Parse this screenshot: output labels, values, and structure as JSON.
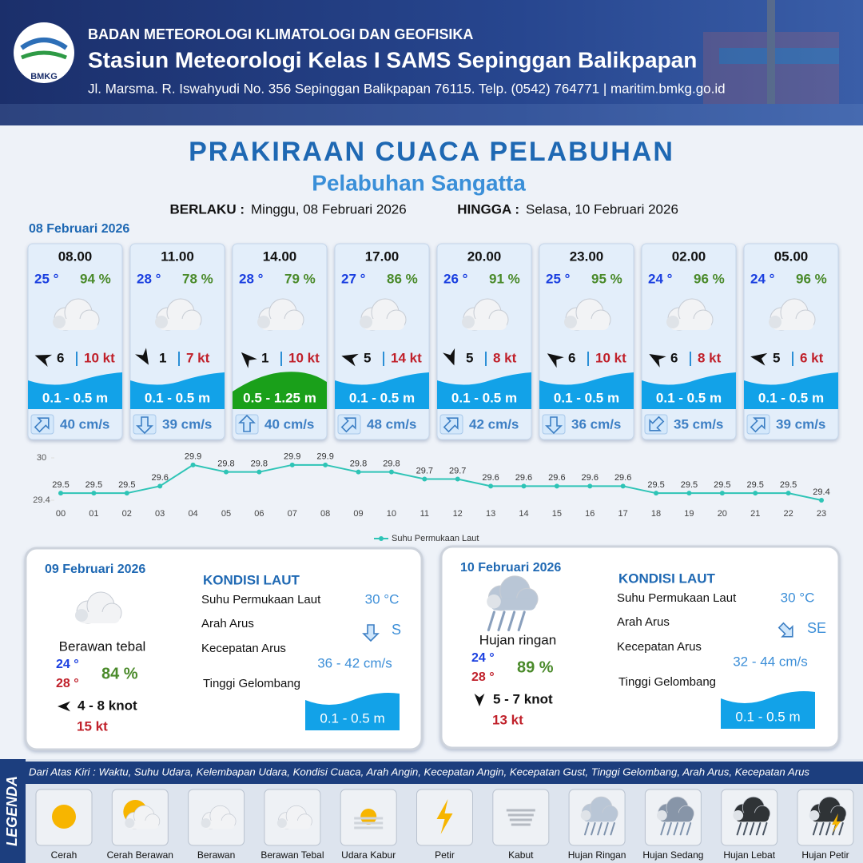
{
  "header": {
    "logo_text": "BMKG",
    "agency": "BADAN METEOROLOGI KLIMATOLOGI DAN GEOFISIKA",
    "station": "Stasiun Meteorologi Kelas I SAMS Sepinggan Balikpapan",
    "address": "Jl. Marsma. R. Iswahyudi No. 356 Sepinggan Balikpapan 76115. Telp. (0542) 764771 | maritim.bmkg.go.id"
  },
  "title": "PRAKIRAAN CUACA PELABUHAN",
  "subtitle": "Pelabuhan Sangatta",
  "validity": {
    "from_label": "BERLAKU :",
    "from": "Minggu, 08 Februari 2026",
    "to_label": "HINGGA :",
    "to": "Selasa, 10 Februari 2026"
  },
  "day1": {
    "date": "08 Februari 2026",
    "forecasts": [
      {
        "time": "08.00",
        "temp": "25 °",
        "humidity": "94 %",
        "wind": "6",
        "gust": "10 kt",
        "wave": "0.1 - 0.5 m",
        "current": "40 cm/s"
      },
      {
        "time": "11.00",
        "temp": "28 °",
        "humidity": "78 %",
        "wind": "1",
        "gust": "7 kt",
        "wave": "0.1 - 0.5 m",
        "current": "39 cm/s"
      },
      {
        "time": "14.00",
        "temp": "28 °",
        "humidity": "79 %",
        "wind": "1",
        "gust": "10 kt",
        "wave": "0.5 - 1.25 m",
        "current": "40 cm/s"
      },
      {
        "time": "17.00",
        "temp": "27 °",
        "humidity": "86 %",
        "wind": "5",
        "gust": "14 kt",
        "wave": "0.1 - 0.5 m",
        "current": "48 cm/s"
      },
      {
        "time": "20.00",
        "temp": "26 °",
        "humidity": "91 %",
        "wind": "5",
        "gust": "8 kt",
        "wave": "0.1 - 0.5 m",
        "current": "42 cm/s"
      },
      {
        "time": "23.00",
        "temp": "25 °",
        "humidity": "95 %",
        "wind": "6",
        "gust": "10 kt",
        "wave": "0.1 - 0.5 m",
        "current": "36 cm/s"
      },
      {
        "time": "02.00",
        "temp": "24 °",
        "humidity": "96 %",
        "wind": "6",
        "gust": "8 kt",
        "wave": "0.1 - 0.5 m",
        "current": "35 cm/s"
      },
      {
        "time": "05.00",
        "temp": "24 °",
        "humidity": "96 %",
        "wind": "5",
        "gust": "6 kt",
        "wave": "0.1 - 0.5 m",
        "current": "39 cm/s"
      }
    ]
  },
  "chart_data": {
    "type": "line",
    "categories": [
      "00",
      "01",
      "02",
      "03",
      "04",
      "05",
      "06",
      "07",
      "08",
      "09",
      "10",
      "11",
      "12",
      "13",
      "14",
      "15",
      "16",
      "17",
      "18",
      "19",
      "20",
      "21",
      "22",
      "23"
    ],
    "series": [
      {
        "name": "Suhu Permukaan Laut",
        "color": "#2ec4b6",
        "values": [
          29.5,
          29.5,
          29.5,
          29.6,
          29.9,
          29.8,
          29.8,
          29.9,
          29.9,
          29.8,
          29.8,
          29.7,
          29.7,
          29.6,
          29.6,
          29.6,
          29.6,
          29.6,
          29.5,
          29.5,
          29.5,
          29.5,
          29.5,
          29.4
        ]
      }
    ],
    "ylim": [
      29.4,
      30
    ],
    "yticks": [
      29.4,
      30
    ]
  },
  "days": [
    {
      "date": "09 Februari 2026",
      "condition": "Berawan tebal",
      "temp_min": "24 °",
      "temp_max": "28 °",
      "humidity": "84 %",
      "wind": "4 - 8 knot",
      "gust": "15 kt",
      "sea_title": "KONDISI LAUT",
      "sst_label": "Suhu Permukaan Laut",
      "sst": "30 °C",
      "current_dir_label": "Arah Arus",
      "current_dir": "S",
      "current_speed_label": "Kecepatan Arus",
      "current_speed": "36  - 42 cm/s",
      "wave_label": "Tinggi Gelombang",
      "wave": "0.1 - 0.5 m"
    },
    {
      "date": "10 Februari 2026",
      "condition": "Hujan ringan",
      "temp_min": "24 °",
      "temp_max": "28 °",
      "humidity": "89 %",
      "wind": "5 - 7 knot",
      "gust": "13 kt",
      "sea_title": "KONDISI LAUT",
      "sst_label": "Suhu Permukaan Laut",
      "sst": "30 °C",
      "current_dir_label": "Arah Arus",
      "current_dir": "SE",
      "current_speed_label": "Kecepatan Arus",
      "current_speed": "32  - 44 cm/s",
      "wave_label": "Tinggi Gelombang",
      "wave": "0.1 - 0.5 m"
    }
  ],
  "legend": {
    "heading": "LEGENDA",
    "description": "Dari Atas Kiri : Waktu, Suhu Udara, Kelembapan Udara, Kondisi Cuaca, Arah Angin, Kecepatan Angin, Kecepatan Gust, Tinggi Gelombang, Arah Arus, Kecepatan Arus",
    "items": [
      "Cerah",
      "Cerah Berawan",
      "Berawan",
      "Berawan Tebal",
      "Udara Kabur",
      "Petir",
      "Kabut",
      "Hujan Ringan",
      "Hujan Sedang",
      "Hujan Lebat",
      "Hujan Petir"
    ]
  }
}
